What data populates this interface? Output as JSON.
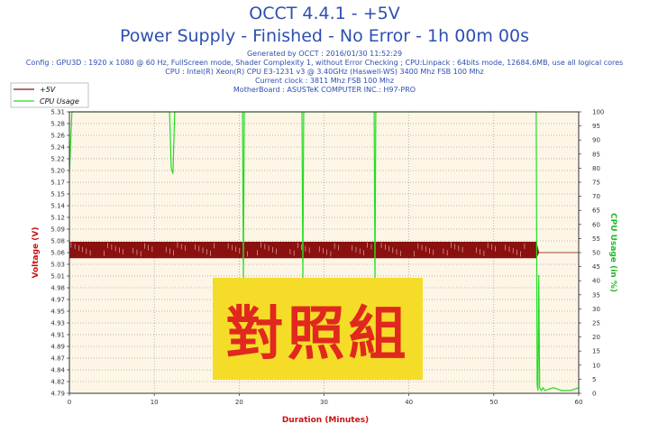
{
  "header": {
    "title": "OCCT 4.4.1 - +5V",
    "subtitle": "Power Supply - Finished - No Error - 1h 00m 00s",
    "generated": "Generated by OCCT : 2016/01/30 11:52:29",
    "config": "Config : GPU3D : 1920 x 1080 @ 60 Hz, FullScreen mode, Shader Complexity 1, without Error Checking ; CPU:Linpack : 64bits mode, 12684.6MB, use all logical cores",
    "cpu": "CPU : Intel(R) Xeon(R) CPU E3-1231 v3 @ 3.40GHz (Haswell-WS) 3400 Mhz FSB 100 Mhz",
    "clock": "Current clock : 3811 Mhz FSB 100 Mhz",
    "motherboard": "MotherBoard : ASUSTeK COMPUTER INC.: H97-PRO"
  },
  "overlay": {
    "text": "對照組",
    "background": "#f5dc28",
    "color": "#e0281e"
  },
  "colors": {
    "plot_bg": "#fdf6e6",
    "voltage": "#8b1010",
    "cpu": "#22dd22",
    "grid": "#777777"
  },
  "chart_data": {
    "type": "line",
    "xlabel": "Duration (Minutes)",
    "ylabel": "Voltage (V)",
    "y2label": "CPU Usage (in %)",
    "xlim": [
      0,
      60
    ],
    "ylim": [
      4.79,
      5.33
    ],
    "y2lim": [
      0,
      100
    ],
    "x_ticks": [
      "0",
      "10",
      "20",
      "30",
      "40",
      "50",
      "60"
    ],
    "y_ticks": [
      "5.31",
      "5.28",
      "5.26",
      "5.24",
      "5.22",
      "5.20",
      "5.17",
      "5.15",
      "5.14",
      "5.12",
      "5.09",
      "5.08",
      "5.06",
      "5.03",
      "5.01",
      "4.98",
      "4.97",
      "4.95",
      "4.93",
      "4.91",
      "4.89",
      "4.87",
      "4.84",
      "4.82",
      "4.79"
    ],
    "y2_ticks": [
      "100",
      "95",
      "90",
      "85",
      "80",
      "75",
      "70",
      "65",
      "60",
      "55",
      "50",
      "45",
      "40",
      "35",
      "30",
      "25",
      "20",
      "15",
      "10",
      "5",
      "0"
    ],
    "grid": true,
    "legend_position": "top-left",
    "series": [
      {
        "name": "+5V",
        "axis": "left",
        "x": [
          0,
          55,
          55.3,
          60
        ],
        "upper": [
          5.08,
          5.08,
          5.06,
          5.06
        ],
        "lower": [
          5.05,
          5.05,
          5.06,
          5.06
        ]
      },
      {
        "name": "CPU Usage",
        "axis": "right",
        "x": [
          0,
          0.3,
          0.6,
          11.8,
          12.0,
          12.2,
          12.4,
          20.4,
          20.5,
          20.6,
          27.4,
          27.5,
          27.6,
          35.9,
          36.0,
          36.1,
          55.0,
          55.1,
          55.2,
          55.3,
          55.4,
          55.6,
          55.8,
          56.0,
          57.0,
          58.0,
          59.0,
          60.0
        ],
        "y": [
          78,
          100,
          100,
          100,
          80,
          78,
          100,
          100,
          40,
          100,
          100,
          40,
          100,
          100,
          40,
          100,
          100,
          3,
          1,
          42,
          2,
          1,
          2,
          1,
          2,
          1,
          1,
          2
        ]
      }
    ]
  }
}
